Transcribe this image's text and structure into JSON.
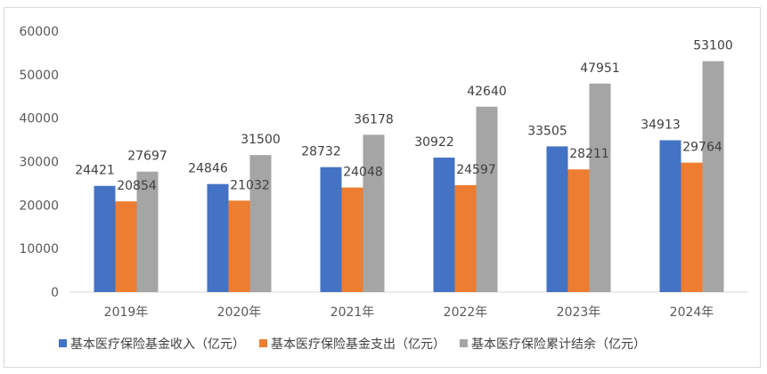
{
  "chart_data": {
    "type": "bar",
    "categories": [
      "2019年",
      "2020年",
      "2021年",
      "2022年",
      "2023年",
      "2024年"
    ],
    "series": [
      {
        "name": "基本医疗保险基金收入（亿元）",
        "color": "#4472C4",
        "values": [
          24421,
          24846,
          28732,
          30922,
          33505,
          34913
        ]
      },
      {
        "name": "基本医疗保险基金支出（亿元）",
        "color": "#ED7D31",
        "values": [
          20854,
          21032,
          24048,
          24597,
          28211,
          29764
        ]
      },
      {
        "name": "基本医疗保险累计结余（亿元）",
        "color": "#A5A5A5",
        "values": [
          27697,
          31500,
          36178,
          42640,
          47951,
          53100
        ]
      }
    ],
    "yticks": [
      "0",
      "10000",
      "20000",
      "30000",
      "40000",
      "50000",
      "60000"
    ],
    "ylim": [
      0,
      60000
    ],
    "grid": false,
    "legend_position": "bottom",
    "title": "",
    "xlabel": "",
    "ylabel": ""
  }
}
